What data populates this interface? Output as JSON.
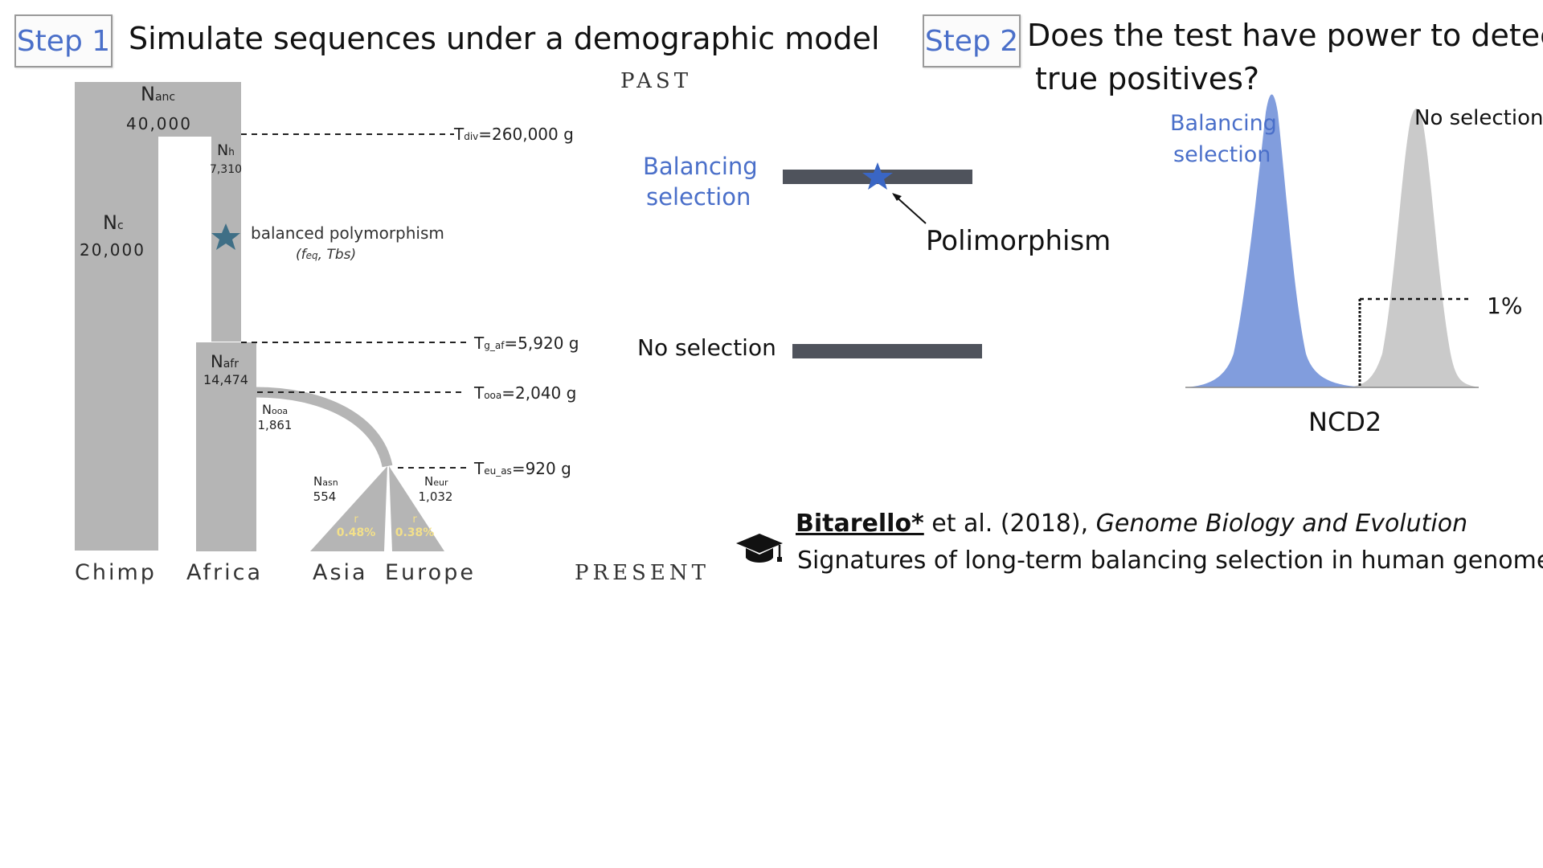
{
  "step1": {
    "label": "Step 1",
    "title": "Simulate sequences under a demographic model"
  },
  "step2": {
    "label": "Step 2",
    "title_line1": "Does the test have power to detect",
    "title_line2": "true positives?"
  },
  "time_axis": {
    "past": "PAST",
    "present": "PRESENT"
  },
  "populations": {
    "chimp": "Chimp",
    "africa": "Africa",
    "asia": "Asia",
    "europe": "Europe"
  },
  "sizes": {
    "n_anc": {
      "sym": "N",
      "sub": "anc",
      "val": "40,000"
    },
    "n_c": {
      "sym": "N",
      "sub": "c",
      "val": "20,000"
    },
    "n_h": {
      "sym": "N",
      "sub": "h",
      "val": "7,310"
    },
    "n_afr": {
      "sym": "N",
      "sub": "afr",
      "val": "14,474"
    },
    "n_ooa": {
      "sym": "N",
      "sub": "ooa",
      "val": "1,861"
    },
    "n_asn": {
      "sym": "N",
      "sub": "asn",
      "val": "554"
    },
    "n_eur": {
      "sym": "N",
      "sub": "eur",
      "val": "1,032"
    }
  },
  "times": {
    "t_div": {
      "sym": "T",
      "sub": "div",
      "val": "=260,000 g"
    },
    "t_g_af": {
      "sym": "T",
      "sub": "g_af",
      "val": "=5,920 g"
    },
    "t_ooa": {
      "sym": "T",
      "sub": "ooa",
      "val": "=2,040 g"
    },
    "t_eu_as": {
      "sym": "T",
      "sub": "eu_as",
      "val": "=920 g"
    }
  },
  "growth": {
    "asia": {
      "r": "r",
      "val": "0.48%"
    },
    "europe": {
      "r": "r",
      "val": "0.38%"
    }
  },
  "balanced": {
    "label": "balanced polymorphism",
    "params_f": "f",
    "params_f_sub": "eq",
    "params_t": "Tbs"
  },
  "middle": {
    "balancing_line1": "Balancing",
    "balancing_line2": "selection",
    "polymorphism": "Polimorphism",
    "no_selection": "No selection"
  },
  "dist": {
    "balancing_line1": "Balancing",
    "balancing_line2": "selection",
    "no_selection": "No selection",
    "threshold": "1%",
    "xlabel": "NCD2"
  },
  "reference": {
    "author": "Bitarello*",
    "rest": " et al. (2018), ",
    "journal": "Genome Biology and Evolution",
    "title": "Signatures of long-term balancing selection in human genomes"
  },
  "colors": {
    "gray": "#b5b5b5",
    "blue": "#4a6fc9",
    "dist_blue": "#6f8fd8",
    "dist_gray": "#c4c4c4",
    "bar": "#4f535c",
    "star": "#3f6f86",
    "growth_text": "#f3e08a"
  },
  "icons": {
    "reference": "graduation-cap-icon"
  }
}
